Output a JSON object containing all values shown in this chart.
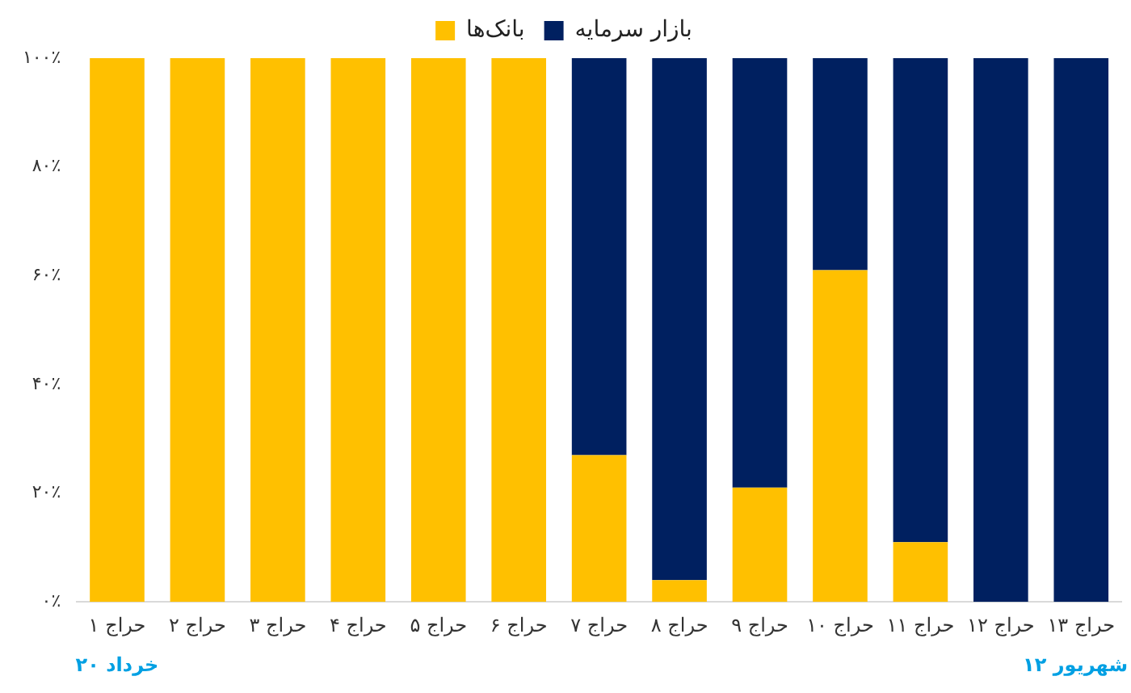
{
  "chart_data": {
    "type": "bar",
    "stacked": true,
    "legend": "top",
    "grid": false,
    "categories": [
      "حراج ۱",
      "حراج ۲",
      "حراج ۳",
      "حراج ۴",
      "حراج ۵",
      "حراج ۶",
      "حراج ۷",
      "حراج ۸",
      "حراج ۹",
      "حراج ۱۰",
      "حراج ۱۱",
      "حراج ۱۲",
      "حراج ۱۳"
    ],
    "series": [
      {
        "name": "بانک‌ها",
        "color": "#ffc000",
        "values": [
          100,
          100,
          100,
          100,
          100,
          100,
          27,
          4,
          21,
          61,
          11,
          0,
          0
        ]
      },
      {
        "name": "بازار سرمایه",
        "color": "#002060",
        "values": [
          0,
          0,
          0,
          0,
          0,
          0,
          73,
          96,
          79,
          39,
          89,
          100,
          100
        ]
      }
    ],
    "ylim": [
      0,
      100
    ],
    "yticks": [
      {
        "value": 0,
        "label": "۰٪"
      },
      {
        "value": 20,
        "label": "۲۰٪"
      },
      {
        "value": 40,
        "label": "۴۰٪"
      },
      {
        "value": 60,
        "label": "۶۰٪"
      },
      {
        "value": 80,
        "label": "۸۰٪"
      },
      {
        "value": 100,
        "label": "۱۰۰٪"
      }
    ],
    "annotations": [
      "۲۰ خرداد",
      "۱۲ شهریور"
    ]
  }
}
